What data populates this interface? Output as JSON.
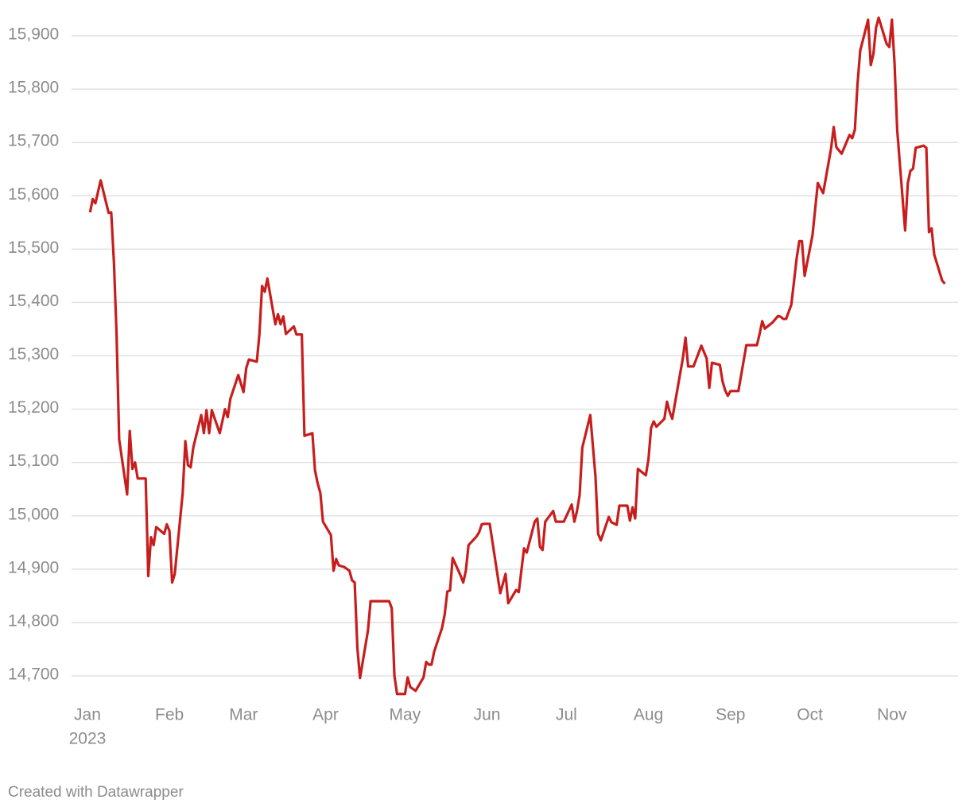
{
  "chart_data": {
    "type": "line",
    "color": "#c71e1d",
    "grid": true,
    "x": [
      1,
      2,
      3,
      5,
      8,
      9,
      10,
      11,
      12,
      15,
      16,
      17,
      18,
      19,
      22,
      23,
      24,
      25,
      26,
      29,
      30,
      31,
      32,
      33,
      36,
      37,
      38,
      39,
      40,
      43,
      44,
      45,
      46,
      47,
      50,
      52,
      53,
      54,
      57,
      59,
      60,
      61,
      64,
      65,
      66,
      67,
      68,
      71,
      72,
      73,
      74,
      75,
      78,
      79,
      81,
      82,
      85,
      86,
      87,
      88,
      89,
      92,
      93,
      94,
      95,
      97,
      99,
      100,
      101,
      102,
      103,
      106,
      107,
      114,
      115,
      116,
      117,
      120,
      121,
      122,
      124,
      127,
      128,
      129,
      130,
      131,
      134,
      135,
      136,
      137,
      138,
      141,
      142,
      143,
      144,
      147,
      148,
      149,
      150,
      152,
      156,
      158,
      159,
      162,
      163,
      165,
      166,
      169,
      170,
      171,
      172,
      173,
      176,
      177,
      180,
      183,
      184,
      185,
      186,
      187,
      190,
      192,
      193,
      194,
      197,
      198,
      200,
      201,
      204,
      205,
      206,
      207,
      208,
      211,
      212,
      213,
      214,
      215,
      218,
      219,
      220,
      221,
      225,
      226,
      227,
      229,
      232,
      234,
      235,
      236,
      239,
      240,
      241,
      242,
      243,
      246,
      249,
      253,
      254,
      255,
      256,
      259,
      261,
      262,
      263,
      264,
      266,
      268,
      269,
      270,
      271,
      274,
      276,
      278,
      281,
      282,
      283,
      285,
      288,
      289,
      290,
      291,
      292,
      295,
      296,
      297,
      298,
      299,
      302,
      303,
      304,
      305,
      306,
      309,
      310,
      311,
      312,
      313,
      316,
      317,
      318,
      319,
      320,
      323,
      324
    ],
    "values": [
      15569,
      15594,
      15586,
      15629,
      15568,
      15569,
      15475,
      15341,
      15143,
      15040,
      15159,
      15088,
      15100,
      15070,
      15070,
      14887,
      14960,
      14945,
      14979,
      14966,
      14984,
      14972,
      14875,
      14891,
      15043,
      15140,
      15095,
      15091,
      15128,
      15189,
      15155,
      15198,
      15155,
      15198,
      15155,
      15200,
      15185,
      15219,
      15264,
      15232,
      15277,
      15293,
      15289,
      15341,
      15431,
      15420,
      15445,
      15359,
      15378,
      15359,
      15374,
      15341,
      15355,
      15340,
      15340,
      15150,
      15155,
      15085,
      15061,
      15043,
      14989,
      14964,
      14897,
      14919,
      14907,
      14904,
      14897,
      14879,
      14875,
      14752,
      14696,
      14785,
      14840,
      14840,
      14827,
      14700,
      14666,
      14666,
      14697,
      14679,
      14672,
      14697,
      14726,
      14721,
      14721,
      14745,
      14790,
      14815,
      14858,
      14860,
      14921,
      14888,
      14875,
      14897,
      14945,
      14961,
      14969,
      14984,
      14985,
      14985,
      14855,
      14891,
      14836,
      14861,
      14857,
      14939,
      14931,
      14989,
      14995,
      14942,
      14936,
      14989,
      15009,
      14989,
      14989,
      15021,
      14989,
      15009,
      15039,
      15128,
      15189,
      15073,
      14966,
      14954,
      14998,
      14988,
      14983,
      15019,
      15019,
      14991,
      15016,
      14995,
      15088,
      15076,
      15106,
      15165,
      15177,
      15167,
      15182,
      15214,
      15195,
      15182,
      15296,
      15334,
      15280,
      15280,
      15319,
      15295,
      15240,
      15287,
      15283,
      15252,
      15235,
      15225,
      15234,
      15234,
      15320,
      15320,
      15341,
      15365,
      15351,
      15363,
      15375,
      15373,
      15369,
      15369,
      15396,
      15483,
      15515,
      15515,
      15450,
      15526,
      15624,
      15605,
      15688,
      15729,
      15691,
      15679,
      15714,
      15708,
      15724,
      15809,
      15872,
      15930,
      15845,
      15866,
      15915,
      15934,
      15885,
      15879,
      15930,
      15848,
      15724,
      15535,
      15624,
      15647,
      15651,
      15690,
      15694,
      15690,
      15532,
      15539,
      15490,
      15441,
      15435
    ],
    "xlim": [
      -6,
      329
    ],
    "xticks": [
      {
        "value": 0,
        "label": "Jan"
      },
      {
        "value": 31,
        "label": "Feb"
      },
      {
        "value": 59,
        "label": "Mar"
      },
      {
        "value": 90,
        "label": "Apr"
      },
      {
        "value": 120,
        "label": "May"
      },
      {
        "value": 151,
        "label": "Jun"
      },
      {
        "value": 181,
        "label": "Jul"
      },
      {
        "value": 212,
        "label": "Aug"
      },
      {
        "value": 243,
        "label": "Sep"
      },
      {
        "value": 273,
        "label": "Oct"
      },
      {
        "value": 304,
        "label": "Nov"
      }
    ],
    "x_year": "2023",
    "ylim": [
      14660,
      15940
    ],
    "yticks": [
      {
        "value": 14700,
        "label": "14,700"
      },
      {
        "value": 14800,
        "label": "14,800"
      },
      {
        "value": 14900,
        "label": "14,900"
      },
      {
        "value": 15000,
        "label": "15,000"
      },
      {
        "value": 15100,
        "label": "15,100"
      },
      {
        "value": 15200,
        "label": "15,200"
      },
      {
        "value": 15300,
        "label": "15,300"
      },
      {
        "value": 15400,
        "label": "15,400"
      },
      {
        "value": 15500,
        "label": "15,500"
      },
      {
        "value": 15600,
        "label": "15,600"
      },
      {
        "value": 15700,
        "label": "15,700"
      },
      {
        "value": 15800,
        "label": "15,800"
      },
      {
        "value": 15900,
        "label": "15,900"
      }
    ],
    "footer": "Created with Datawrapper"
  }
}
